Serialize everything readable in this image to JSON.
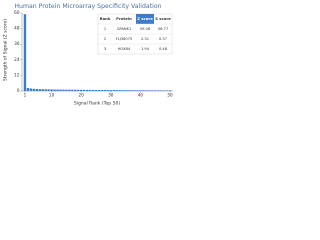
{
  "chart_data": {
    "type": "bar",
    "title": "Human Protein Microarray Specificity Validation",
    "x_label": "Signal Rank (Top 50)",
    "y_label": "Strength of Signal (Z score)",
    "color": "#3d7cc9",
    "x": [
      1,
      2,
      3,
      4,
      5,
      6,
      7,
      8,
      9,
      10,
      11,
      12,
      13,
      14,
      15,
      16,
      17,
      18,
      19,
      20,
      21,
      22,
      23,
      24,
      25,
      26,
      27,
      28,
      29,
      30,
      31,
      32,
      33,
      34,
      35,
      36,
      37,
      38,
      39,
      40,
      41,
      42,
      43,
      44,
      45,
      46,
      47,
      48,
      49,
      50
    ],
    "values": [
      59.08,
      2.31,
      1.94,
      1.7,
      1.55,
      1.45,
      1.38,
      1.32,
      1.27,
      1.22,
      1.18,
      1.14,
      1.1,
      1.07,
      1.04,
      1.01,
      0.98,
      0.95,
      0.93,
      0.9,
      0.88,
      0.86,
      0.84,
      0.82,
      0.8,
      0.78,
      0.76,
      0.74,
      0.72,
      0.7,
      0.69,
      0.67,
      0.66,
      0.64,
      0.63,
      0.61,
      0.6,
      0.59,
      0.57,
      0.56,
      0.55,
      0.54,
      0.52,
      0.51,
      0.5,
      0.49,
      0.48,
      0.47,
      0.46,
      0.45
    ],
    "xlim": [
      0,
      51
    ],
    "xticks": [
      1,
      10,
      20,
      30,
      40,
      50
    ],
    "ylim": [
      0,
      60
    ],
    "yticks": [
      0,
      12,
      24,
      36,
      48,
      60
    ],
    "table": {
      "columns": [
        "Rank",
        "Protein",
        "Z score",
        "S score"
      ],
      "rows": [
        [
          1,
          "GPANK1",
          59.08,
          56.77
        ],
        [
          2,
          "FLJ36075",
          2.31,
          0.37
        ],
        [
          3,
          "HOXB4",
          1.94,
          0.48
        ]
      ]
    }
  }
}
